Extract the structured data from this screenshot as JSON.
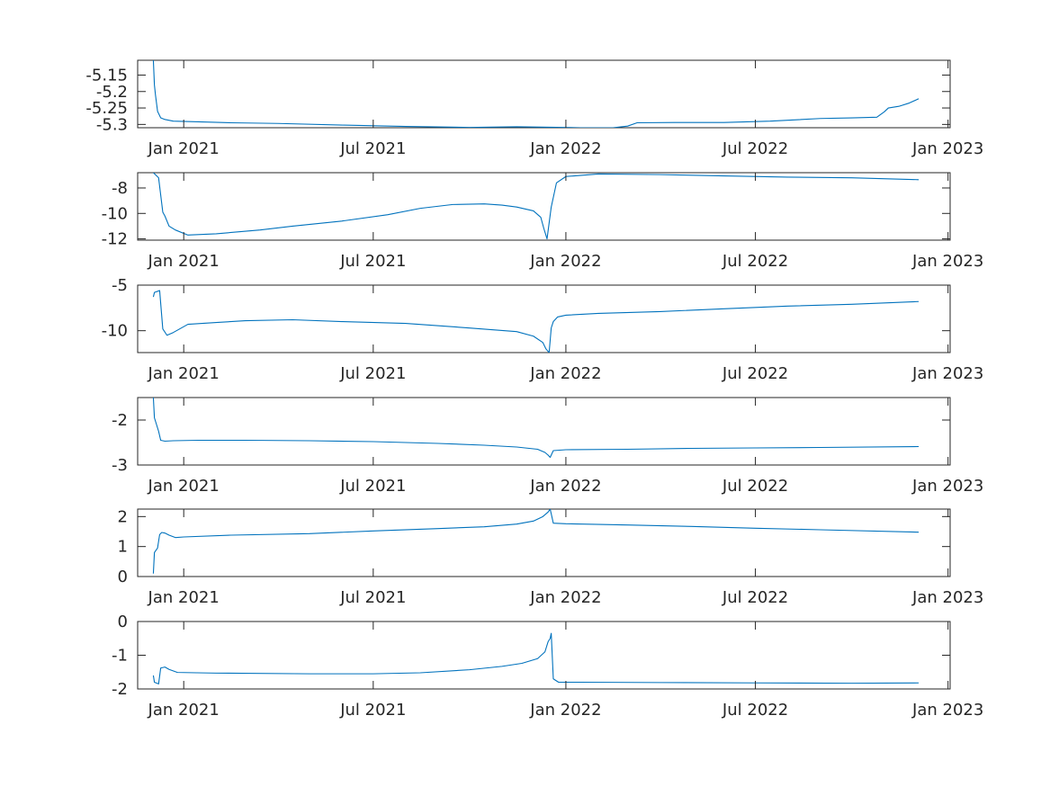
{
  "chart_data": [
    {
      "type": "line",
      "x_ticks": [
        "2021-01-01",
        "2021-07-01",
        "2022-01-01",
        "2022-07-01",
        "2023-01-01"
      ],
      "x_tick_labels": [
        "Jan 2021",
        "Jul 2021",
        "Jan 2022",
        "Jul 2022",
        "Jan 2023"
      ],
      "xlim": [
        "2020-11-18",
        "2023-01-03"
      ],
      "ylim": [
        -5.31,
        -5.105
      ],
      "y_ticks": [
        -5.3,
        -5.25,
        -5.2,
        -5.15
      ],
      "y_tick_labels": [
        "-5.3",
        "-5.25",
        "-5.2",
        "-5.15"
      ],
      "color": "#0072bd",
      "x": [
        "2020-12-03",
        "2020-12-04",
        "2020-12-05",
        "2020-12-07",
        "2020-12-10",
        "2020-12-14",
        "2020-12-22",
        "2021-01-15",
        "2021-02-15",
        "2021-04-01",
        "2021-06-01",
        "2021-08-01",
        "2021-10-01",
        "2021-11-15",
        "2022-01-15",
        "2022-02-15",
        "2022-03-01",
        "2022-03-10",
        "2022-04-15",
        "2022-06-01",
        "2022-07-15",
        "2022-09-01",
        "2022-10-01",
        "2022-10-25",
        "2022-11-01",
        "2022-11-05",
        "2022-11-15",
        "2022-11-25",
        "2022-12-04"
      ],
      "y": [
        -5.105,
        -5.18,
        -5.21,
        -5.26,
        -5.28,
        -5.285,
        -5.29,
        -5.292,
        -5.295,
        -5.297,
        -5.302,
        -5.306,
        -5.309,
        -5.307,
        -5.31,
        -5.31,
        -5.305,
        -5.295,
        -5.294,
        -5.294,
        -5.29,
        -5.282,
        -5.28,
        -5.278,
        -5.262,
        -5.25,
        -5.245,
        -5.235,
        -5.222
      ]
    },
    {
      "type": "line",
      "x_ticks": [
        "2021-01-01",
        "2021-07-01",
        "2022-01-01",
        "2022-07-01",
        "2023-01-01"
      ],
      "x_tick_labels": [
        "Jan 2021",
        "Jul 2021",
        "Jan 2022",
        "Jul 2022",
        "Jan 2023"
      ],
      "xlim": [
        "2020-11-18",
        "2023-01-03"
      ],
      "ylim": [
        -12.1,
        -6.8
      ],
      "y_ticks": [
        -12,
        -10,
        -8
      ],
      "y_tick_labels": [
        "-12",
        "-10",
        "-8"
      ],
      "color": "#0072bd",
      "x": [
        "2020-12-03",
        "2020-12-08",
        "2020-12-12",
        "2020-12-14",
        "2020-12-18",
        "2020-12-24",
        "2021-01-05",
        "2021-02-01",
        "2021-03-15",
        "2021-04-15",
        "2021-06-01",
        "2021-07-15",
        "2021-08-15",
        "2021-09-15",
        "2021-10-15",
        "2021-11-01",
        "2021-11-15",
        "2021-12-01",
        "2021-12-08",
        "2021-12-11",
        "2021-12-14",
        "2021-12-18",
        "2021-12-23",
        "2022-01-01",
        "2022-02-01",
        "2022-04-01",
        "2022-06-01",
        "2022-08-01",
        "2022-10-01",
        "2022-12-04"
      ],
      "y": [
        -6.8,
        -7.2,
        -9.9,
        -10.2,
        -11.0,
        -11.3,
        -11.7,
        -11.6,
        -11.3,
        -11.0,
        -10.6,
        -10.1,
        -9.6,
        -9.3,
        -9.25,
        -9.35,
        -9.5,
        -9.8,
        -10.3,
        -11.2,
        -12.0,
        -9.5,
        -7.6,
        -7.1,
        -6.9,
        -6.95,
        -7.05,
        -7.15,
        -7.2,
        -7.35
      ]
    },
    {
      "type": "line",
      "x_ticks": [
        "2021-01-01",
        "2021-07-01",
        "2022-01-01",
        "2022-07-01",
        "2023-01-01"
      ],
      "x_tick_labels": [
        "Jan 2021",
        "Jul 2021",
        "Jan 2022",
        "Jul 2022",
        "Jan 2023"
      ],
      "xlim": [
        "2020-11-18",
        "2023-01-03"
      ],
      "ylim": [
        -12.4,
        -5
      ],
      "y_ticks": [
        -10,
        -5
      ],
      "y_tick_labels": [
        "-10",
        "-5"
      ],
      "color": "#0072bd",
      "x": [
        "2020-12-03",
        "2020-12-04",
        "2020-12-09",
        "2020-12-12",
        "2020-12-16",
        "2020-12-22",
        "2021-01-05",
        "2021-02-01",
        "2021-03-01",
        "2021-04-15",
        "2021-06-01",
        "2021-08-01",
        "2021-10-01",
        "2021-11-15",
        "2021-12-01",
        "2021-12-10",
        "2021-12-13",
        "2021-12-16",
        "2021-12-18",
        "2021-12-20",
        "2021-12-24",
        "2022-01-01",
        "2022-02-01",
        "2022-04-01",
        "2022-06-01",
        "2022-08-01",
        "2022-10-01",
        "2022-12-04"
      ],
      "y": [
        -6.3,
        -5.8,
        -5.6,
        -9.8,
        -10.5,
        -10.2,
        -9.3,
        -9.1,
        -8.9,
        -8.8,
        -9.0,
        -9.2,
        -9.7,
        -10.1,
        -10.6,
        -11.3,
        -12.0,
        -12.4,
        -9.7,
        -9.0,
        -8.5,
        -8.3,
        -8.1,
        -7.9,
        -7.6,
        -7.3,
        -7.1,
        -6.8
      ]
    },
    {
      "type": "line",
      "x_ticks": [
        "2021-01-01",
        "2021-07-01",
        "2022-01-01",
        "2022-07-01",
        "2023-01-01"
      ],
      "x_tick_labels": [
        "Jan 2021",
        "Jul 2021",
        "Jan 2022",
        "Jul 2022",
        "Jan 2023"
      ],
      "xlim": [
        "2020-11-18",
        "2023-01-03"
      ],
      "ylim": [
        -3,
        -1.5
      ],
      "y_ticks": [
        -3,
        -2
      ],
      "y_tick_labels": [
        "-3",
        "-2"
      ],
      "color": "#0072bd",
      "x": [
        "2020-12-03",
        "2020-12-04",
        "2020-12-08",
        "2020-12-10",
        "2020-12-14",
        "2020-12-22",
        "2021-01-15",
        "2021-03-01",
        "2021-05-01",
        "2021-07-01",
        "2021-09-01",
        "2021-10-15",
        "2021-11-15",
        "2021-12-05",
        "2021-12-12",
        "2021-12-15",
        "2021-12-17",
        "2021-12-20",
        "2022-01-01",
        "2022-03-01",
        "2022-05-01",
        "2022-07-01",
        "2022-09-01",
        "2022-12-04"
      ],
      "y": [
        -1.5,
        -1.95,
        -2.25,
        -2.45,
        -2.47,
        -2.46,
        -2.45,
        -2.45,
        -2.46,
        -2.48,
        -2.52,
        -2.56,
        -2.6,
        -2.65,
        -2.72,
        -2.78,
        -2.83,
        -2.68,
        -2.66,
        -2.65,
        -2.63,
        -2.62,
        -2.61,
        -2.59
      ]
    },
    {
      "type": "line",
      "x_ticks": [
        "2021-01-01",
        "2021-07-01",
        "2022-01-01",
        "2022-07-01",
        "2023-01-01"
      ],
      "x_tick_labels": [
        "Jan 2021",
        "Jul 2021",
        "Jan 2022",
        "Jul 2022",
        "Jan 2023"
      ],
      "xlim": [
        "2020-11-18",
        "2023-01-03"
      ],
      "ylim": [
        0,
        2.25
      ],
      "y_ticks": [
        0,
        1,
        2
      ],
      "y_tick_labels": [
        "0",
        "1",
        "2"
      ],
      "color": "#0072bd",
      "x": [
        "2020-12-03",
        "2020-12-04",
        "2020-12-07",
        "2020-12-09",
        "2020-12-11",
        "2020-12-14",
        "2020-12-18",
        "2020-12-24",
        "2021-01-01",
        "2021-02-15",
        "2021-05-01",
        "2021-07-01",
        "2021-09-01",
        "2021-10-15",
        "2021-11-15",
        "2021-12-01",
        "2021-12-10",
        "2021-12-15",
        "2021-12-17",
        "2021-12-20",
        "2022-01-01",
        "2022-03-01",
        "2022-05-01",
        "2022-07-01",
        "2022-09-01",
        "2022-12-04"
      ],
      "y": [
        0.1,
        0.8,
        0.95,
        1.4,
        1.47,
        1.45,
        1.38,
        1.3,
        1.32,
        1.38,
        1.43,
        1.52,
        1.6,
        1.66,
        1.75,
        1.85,
        2.0,
        2.15,
        2.25,
        1.78,
        1.76,
        1.72,
        1.67,
        1.61,
        1.56,
        1.48
      ]
    },
    {
      "type": "line",
      "x_ticks": [
        "2021-01-01",
        "2021-07-01",
        "2022-01-01",
        "2022-07-01",
        "2023-01-01"
      ],
      "x_tick_labels": [
        "Jan 2021",
        "Jul 2021",
        "Jan 2022",
        "Jul 2022",
        "Jan 2023"
      ],
      "xlim": [
        "2020-11-18",
        "2023-01-03"
      ],
      "ylim": [
        -2,
        0
      ],
      "y_ticks": [
        -2,
        -1,
        0
      ],
      "y_tick_labels": [
        "-2",
        "-1",
        "0"
      ],
      "color": "#0072bd",
      "x": [
        "2020-12-03",
        "2020-12-04",
        "2020-12-08",
        "2020-12-10",
        "2020-12-14",
        "2020-12-18",
        "2020-12-26",
        "2021-02-01",
        "2021-05-01",
        "2021-07-01",
        "2021-08-15",
        "2021-10-01",
        "2021-11-01",
        "2021-11-20",
        "2021-12-05",
        "2021-12-12",
        "2021-12-15",
        "2021-12-17",
        "2021-12-18",
        "2021-12-20",
        "2021-12-25",
        "2022-01-15",
        "2022-04-01",
        "2022-07-01",
        "2022-10-01",
        "2022-12-04"
      ],
      "y": [
        -1.6,
        -1.8,
        -1.85,
        -1.38,
        -1.35,
        -1.42,
        -1.51,
        -1.53,
        -1.55,
        -1.55,
        -1.52,
        -1.43,
        -1.33,
        -1.24,
        -1.1,
        -0.9,
        -0.6,
        -0.5,
        -0.35,
        -1.7,
        -1.8,
        -1.8,
        -1.81,
        -1.82,
        -1.83,
        -1.82
      ]
    }
  ]
}
